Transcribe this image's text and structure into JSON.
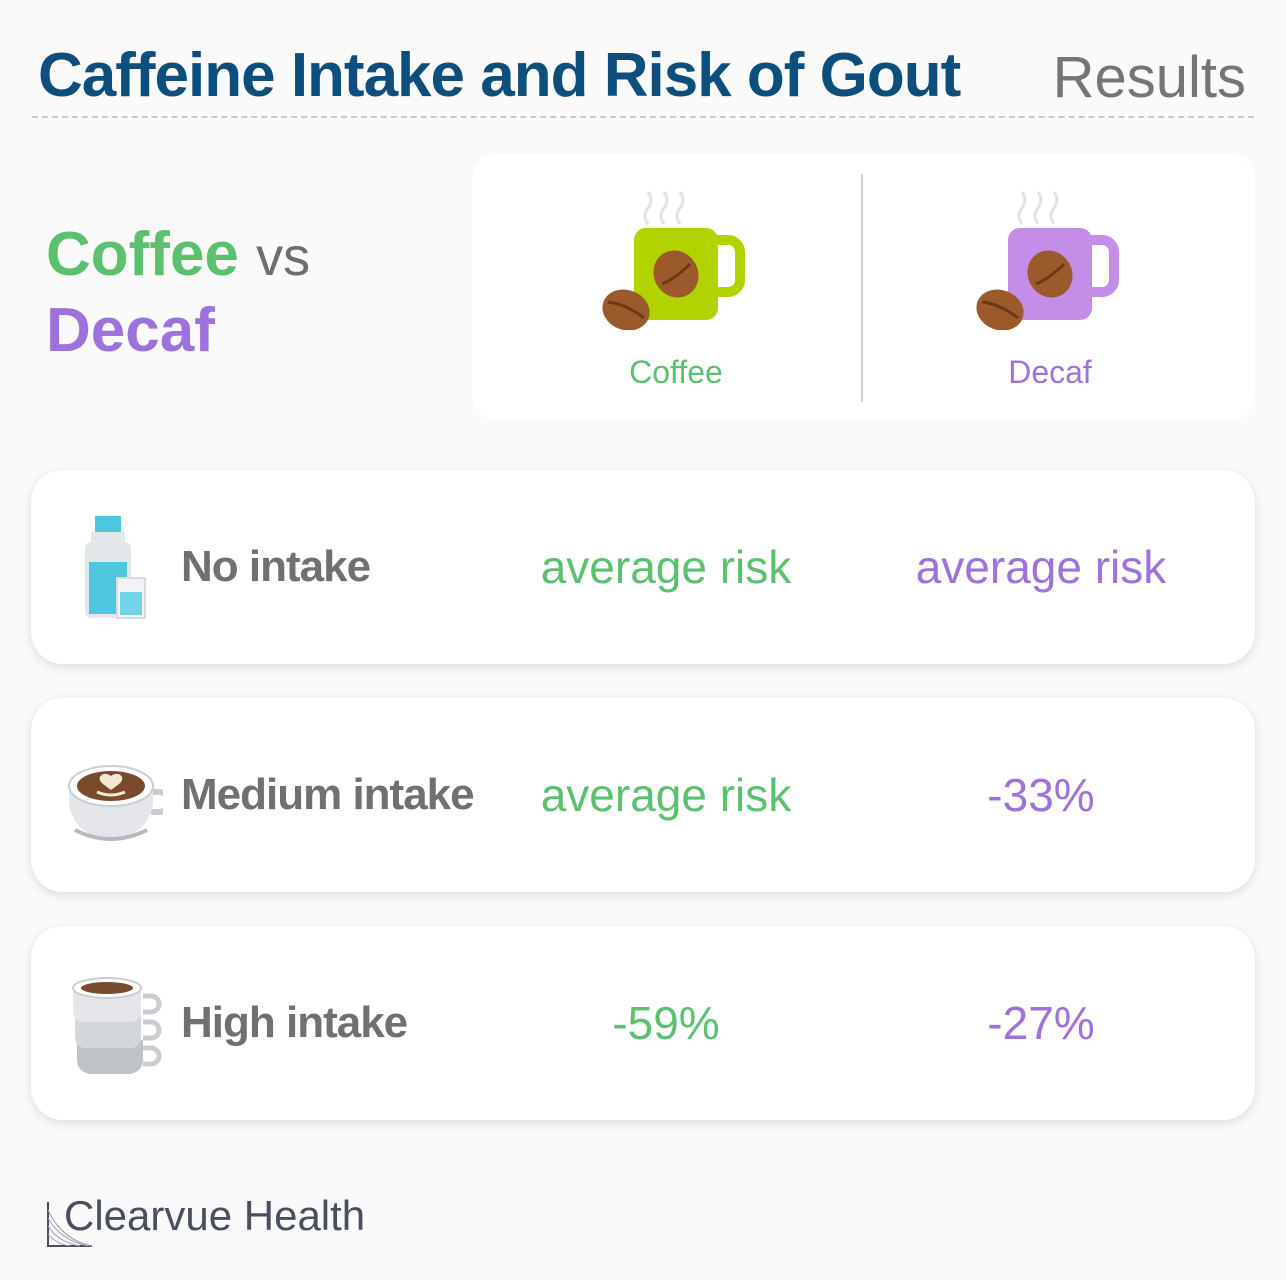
{
  "header": {
    "title": "Caffeine Intake and Risk of Gout",
    "section": "Results"
  },
  "comparison": {
    "coffee": "Coffee",
    "vs": "vs",
    "decaf": "Decaf"
  },
  "legend": {
    "coffee_label": "Coffee",
    "decaf_label": "Decaf"
  },
  "rows": [
    {
      "label": "No intake",
      "icon": "water-bottle-glass-icon",
      "coffee": "average risk",
      "decaf": "average risk"
    },
    {
      "label": "Medium intake",
      "icon": "latte-cup-icon",
      "coffee": "average risk",
      "decaf": "-33%"
    },
    {
      "label": "High intake",
      "icon": "stacked-cups-icon",
      "coffee": "-59%",
      "decaf": "-27%"
    }
  ],
  "footer": {
    "brand": "Clearvue Health"
  },
  "colors": {
    "title": "#0d4f7c",
    "coffee": "#5cc16f",
    "decaf": "#9e72dc",
    "label": "#707070"
  }
}
